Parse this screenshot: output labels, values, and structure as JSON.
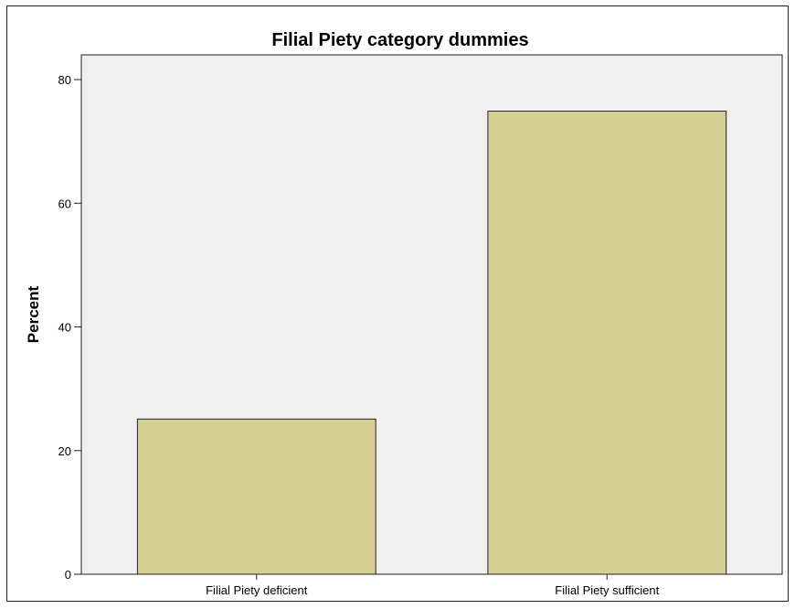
{
  "chart_data": {
    "type": "bar",
    "title": "Filial Piety category dummies",
    "xlabel": "",
    "ylabel": "Percent",
    "categories": [
      "Filial Piety deficient",
      "Filial Piety sufficient"
    ],
    "values": [
      25.1,
      74.9
    ],
    "ylim": [
      0,
      84
    ],
    "yticks": [
      0,
      20,
      40,
      60,
      80
    ],
    "ytick_labels": [
      "0",
      "20",
      "40",
      "60",
      "80"
    ],
    "grid": false,
    "legend": "none",
    "colors": {
      "bar_fill": "#d4cf93",
      "bar_stroke": "#222222",
      "plot_background": "#f0f0f0"
    }
  }
}
